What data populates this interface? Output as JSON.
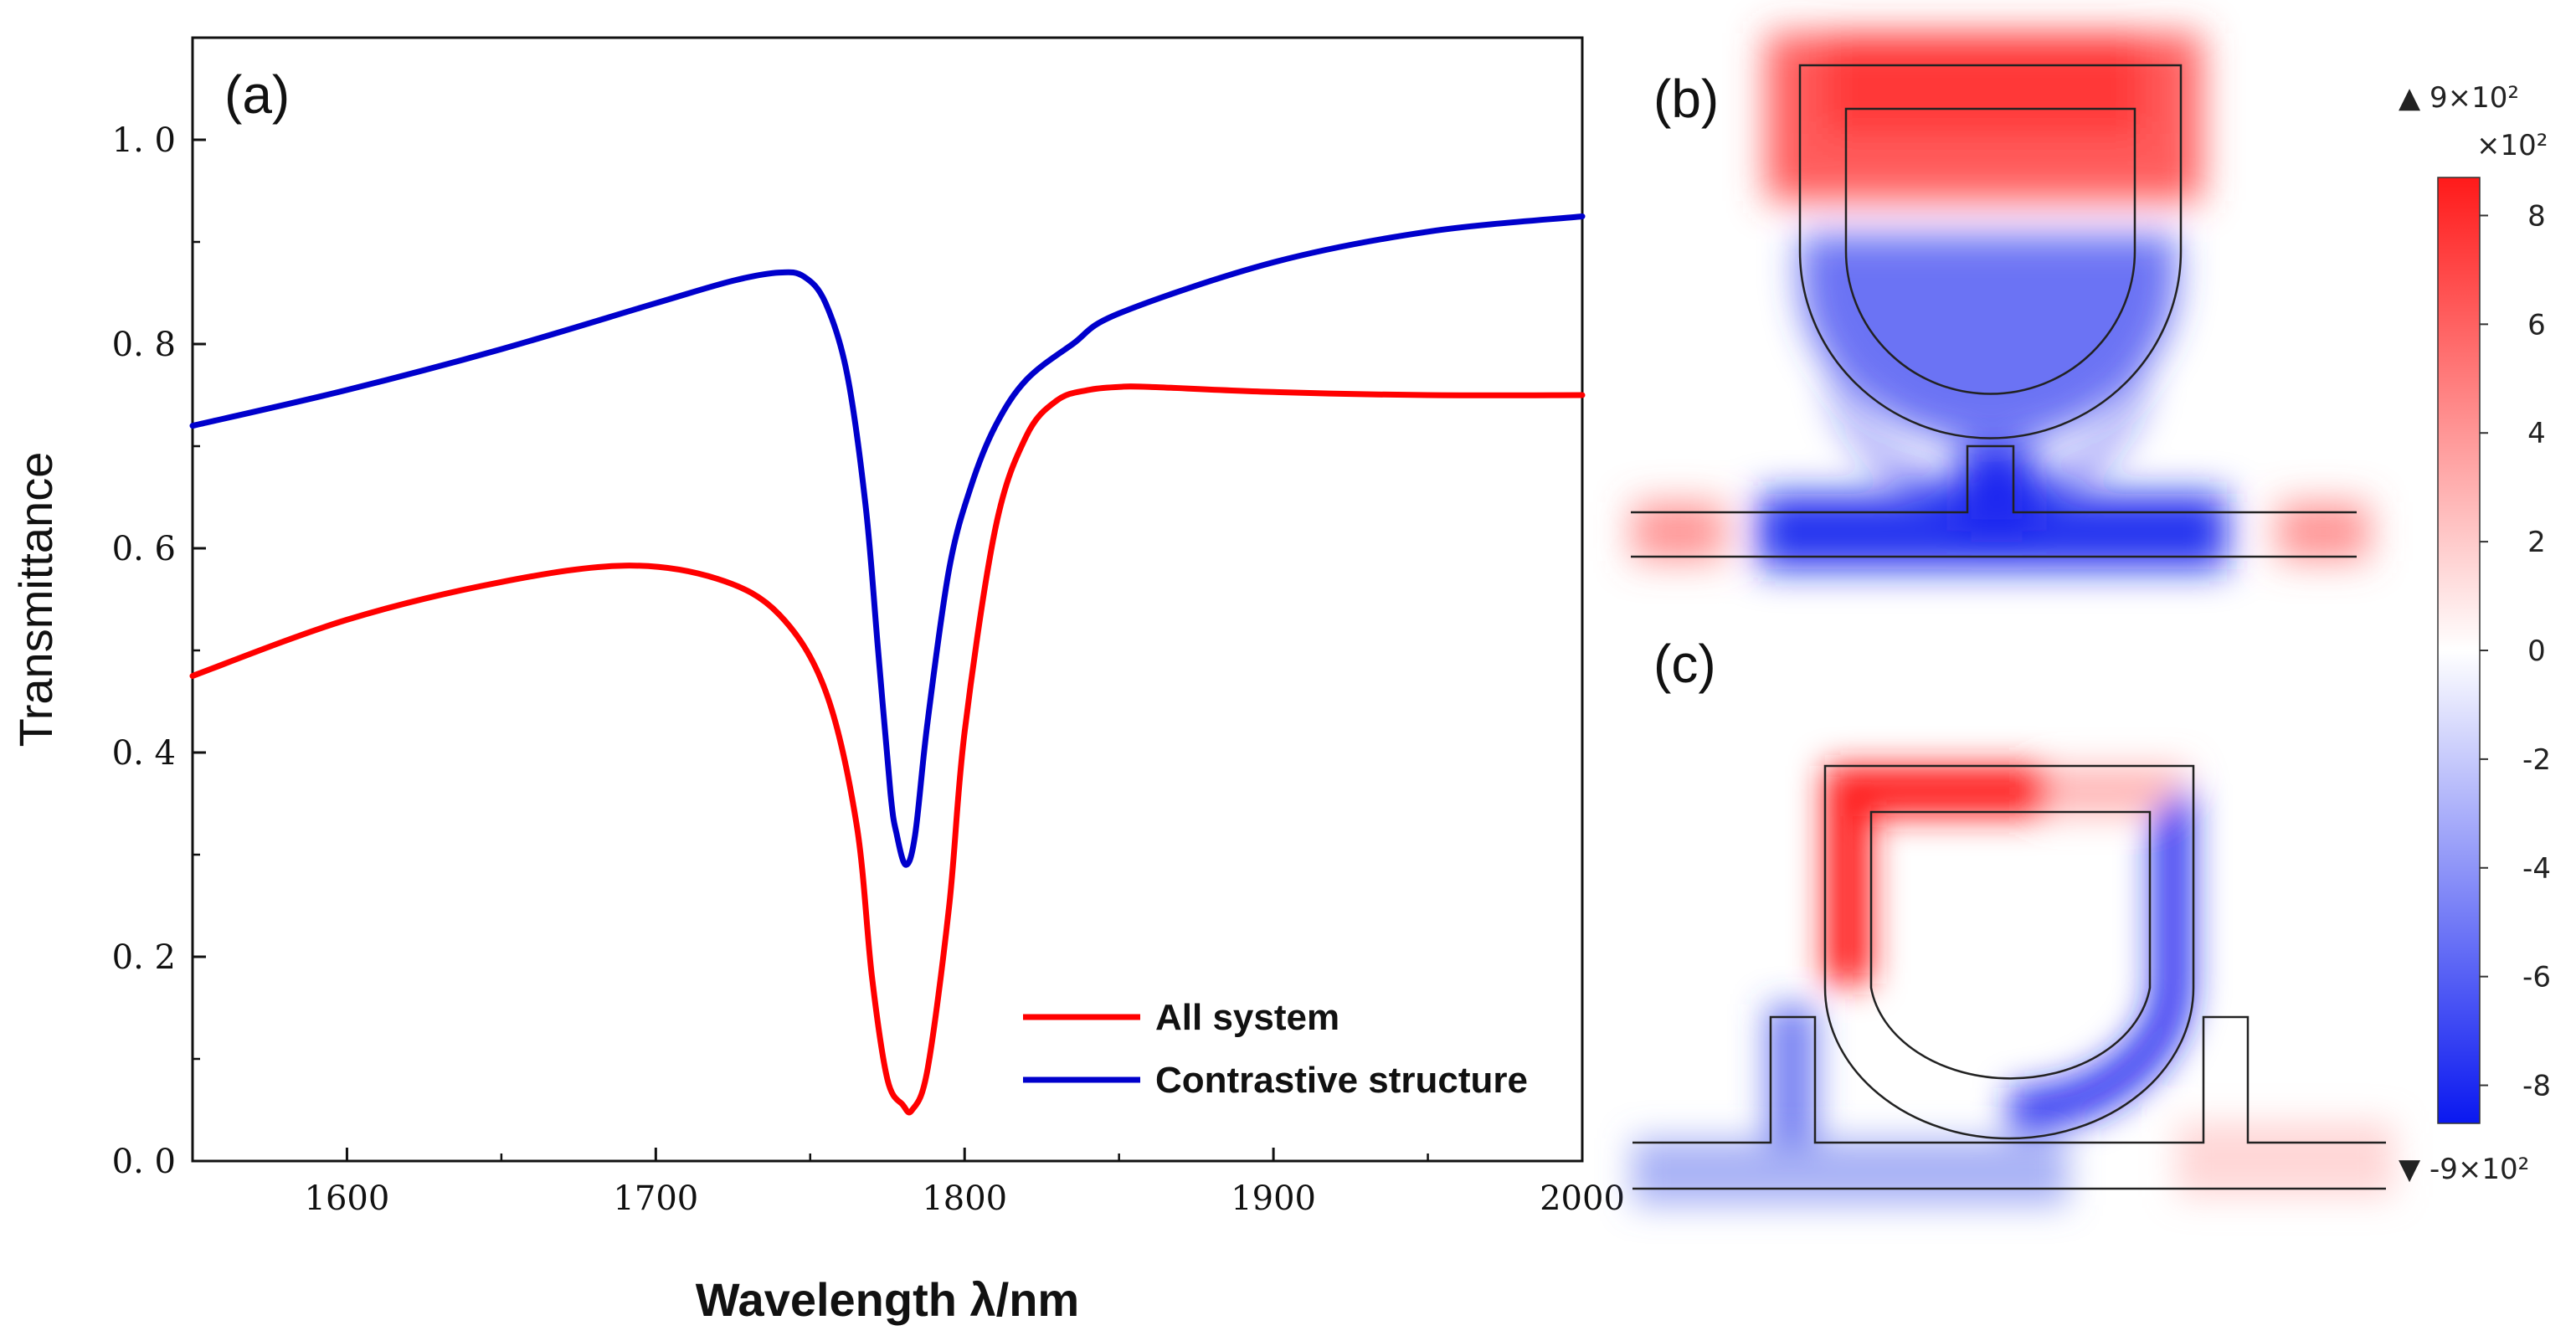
{
  "chart_data": [
    {
      "type": "line",
      "panel": "(a)",
      "title": "",
      "xlabel": "Wavelength λ/nm",
      "ylabel": "Transmittance",
      "xlim": [
        1550,
        2000
      ],
      "ylim": [
        0.0,
        1.1
      ],
      "xticks": [
        1600,
        1700,
        1800,
        1900,
        2000
      ],
      "ytick_values": [
        0.0,
        0.2,
        0.4,
        0.6,
        0.8,
        1.0
      ],
      "ytick_labels": [
        "0. 0",
        "0. 2",
        "0. 4",
        "0. 6",
        "0. 8",
        "1. 0"
      ],
      "grid": false,
      "legend_position": "bottom-right",
      "series": [
        {
          "name": "All system",
          "color": "#ff0000",
          "x": [
            1550,
            1600,
            1650,
            1690,
            1720,
            1740,
            1755,
            1765,
            1770,
            1775,
            1780,
            1783,
            1788,
            1795,
            1800,
            1810,
            1820,
            1830,
            1840,
            1850,
            1860,
            1900,
            1950,
            2000
          ],
          "y": [
            0.475,
            0.53,
            0.567,
            0.583,
            0.57,
            0.535,
            0.46,
            0.33,
            0.18,
            0.08,
            0.055,
            0.05,
            0.09,
            0.25,
            0.42,
            0.62,
            0.71,
            0.745,
            0.755,
            0.758,
            0.758,
            0.753,
            0.75,
            0.75
          ]
        },
        {
          "name": "Contrastive structure",
          "color": "#0000cc",
          "x": [
            1550,
            1600,
            1650,
            1700,
            1725,
            1740,
            1748,
            1755,
            1762,
            1768,
            1772,
            1776,
            1778,
            1781,
            1784,
            1788,
            1795,
            1802,
            1810,
            1820,
            1835,
            1850,
            1900,
            1950,
            2000
          ],
          "y": [
            0.72,
            0.755,
            0.795,
            0.84,
            0.862,
            0.87,
            0.866,
            0.84,
            0.77,
            0.64,
            0.5,
            0.36,
            0.32,
            0.29,
            0.32,
            0.43,
            0.58,
            0.66,
            0.72,
            0.765,
            0.8,
            0.83,
            0.88,
            0.91,
            0.925
          ]
        }
      ]
    },
    {
      "type": "heatmap",
      "panel": "(b)",
      "description_visible": "field distribution"
    },
    {
      "type": "heatmap",
      "panel": "(c)",
      "description_visible": "field distribution"
    }
  ],
  "colorbar": {
    "max_label": "▲ 9×10²",
    "multiplier_label": "×10²",
    "min_label": "▼ -9×10²",
    "ticks": [
      8,
      6,
      4,
      2,
      0,
      -2,
      -4,
      -6,
      -8
    ],
    "range": [
      -8.7,
      8.7
    ]
  },
  "panel_labels": [
    "(a)",
    "(b)",
    "(c)"
  ],
  "colors": {
    "red": "#ff0000",
    "blue": "#0000cc",
    "axis": "#111111"
  }
}
